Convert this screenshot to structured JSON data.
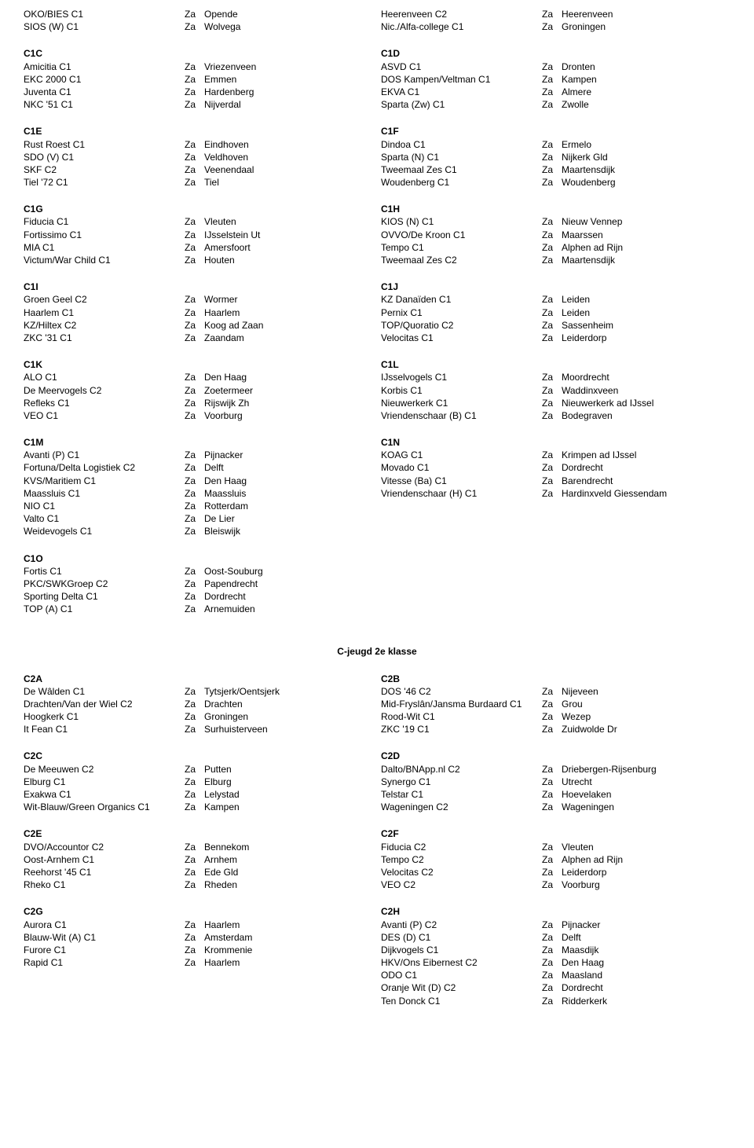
{
  "section_title": "C-jeugd 2e klasse",
  "top_left": [
    {
      "name": "OKO/BIES C1",
      "day": "Za",
      "city": "Opende"
    },
    {
      "name": "SIOS (W) C1",
      "day": "Za",
      "city": "Wolvega"
    }
  ],
  "top_right": [
    {
      "name": "Heerenveen C2",
      "day": "Za",
      "city": "Heerenveen"
    },
    {
      "name": "Nic./Alfa-college C1",
      "day": "Za",
      "city": "Groningen"
    }
  ],
  "upper": {
    "left": [
      {
        "header": "C1C",
        "teams": [
          {
            "name": "Amicitia C1",
            "day": "Za",
            "city": "Vriezenveen"
          },
          {
            "name": "EKC 2000 C1",
            "day": "Za",
            "city": "Emmen"
          },
          {
            "name": "Juventa C1",
            "day": "Za",
            "city": "Hardenberg"
          },
          {
            "name": "NKC '51 C1",
            "day": "Za",
            "city": "Nijverdal"
          }
        ]
      },
      {
        "header": "C1E",
        "teams": [
          {
            "name": "Rust Roest C1",
            "day": "Za",
            "city": "Eindhoven"
          },
          {
            "name": "SDO (V) C1",
            "day": "Za",
            "city": "Veldhoven"
          },
          {
            "name": "SKF C2",
            "day": "Za",
            "city": "Veenendaal"
          },
          {
            "name": "Tiel '72 C1",
            "day": "Za",
            "city": "Tiel"
          }
        ]
      },
      {
        "header": "C1G",
        "teams": [
          {
            "name": "Fiducia C1",
            "day": "Za",
            "city": "Vleuten"
          },
          {
            "name": "Fortissimo C1",
            "day": "Za",
            "city": "IJsselstein Ut"
          },
          {
            "name": "MIA C1",
            "day": "Za",
            "city": "Amersfoort"
          },
          {
            "name": "Victum/War Child C1",
            "day": "Za",
            "city": "Houten"
          }
        ]
      },
      {
        "header": "C1I",
        "teams": [
          {
            "name": "Groen Geel C2",
            "day": "Za",
            "city": "Wormer"
          },
          {
            "name": "Haarlem C1",
            "day": "Za",
            "city": "Haarlem"
          },
          {
            "name": "KZ/Hiltex C2",
            "day": "Za",
            "city": "Koog ad Zaan"
          },
          {
            "name": "ZKC '31 C1",
            "day": "Za",
            "city": "Zaandam"
          }
        ]
      },
      {
        "header": "C1K",
        "teams": [
          {
            "name": "ALO C1",
            "day": "Za",
            "city": "Den Haag"
          },
          {
            "name": "De Meervogels C2",
            "day": "Za",
            "city": "Zoetermeer"
          },
          {
            "name": "Refleks C1",
            "day": "Za",
            "city": "Rijswijk Zh"
          },
          {
            "name": "VEO C1",
            "day": "Za",
            "city": "Voorburg"
          }
        ]
      },
      {
        "header": "C1M",
        "teams": [
          {
            "name": "Avanti (P) C1",
            "day": "Za",
            "city": "Pijnacker"
          },
          {
            "name": "Fortuna/Delta Logistiek C2",
            "day": "Za",
            "city": "Delft"
          },
          {
            "name": "KVS/Maritiem C1",
            "day": "Za",
            "city": "Den Haag"
          },
          {
            "name": "Maassluis C1",
            "day": "Za",
            "city": "Maassluis"
          },
          {
            "name": "NIO C1",
            "day": "Za",
            "city": "Rotterdam"
          },
          {
            "name": "Valto C1",
            "day": "Za",
            "city": "De Lier"
          },
          {
            "name": "Weidevogels C1",
            "day": "Za",
            "city": "Bleiswijk"
          }
        ]
      },
      {
        "header": "C1O",
        "teams": [
          {
            "name": "Fortis C1",
            "day": "Za",
            "city": "Oost-Souburg"
          },
          {
            "name": "PKC/SWKGroep C2",
            "day": "Za",
            "city": "Papendrecht"
          },
          {
            "name": "Sporting Delta C1",
            "day": "Za",
            "city": "Dordrecht"
          },
          {
            "name": "TOP (A) C1",
            "day": "Za",
            "city": "Arnemuiden"
          }
        ]
      }
    ],
    "right": [
      {
        "header": "C1D",
        "teams": [
          {
            "name": "ASVD C1",
            "day": "Za",
            "city": "Dronten"
          },
          {
            "name": "DOS Kampen/Veltman C1",
            "day": "Za",
            "city": "Kampen"
          },
          {
            "name": "EKVA C1",
            "day": "Za",
            "city": "Almere"
          },
          {
            "name": "Sparta (Zw) C1",
            "day": "Za",
            "city": "Zwolle"
          }
        ]
      },
      {
        "header": "C1F",
        "teams": [
          {
            "name": "Dindoa C1",
            "day": "Za",
            "city": "Ermelo"
          },
          {
            "name": "Sparta (N) C1",
            "day": "Za",
            "city": "Nijkerk Gld"
          },
          {
            "name": "Tweemaal Zes C1",
            "day": "Za",
            "city": "Maartensdijk"
          },
          {
            "name": "Woudenberg C1",
            "day": "Za",
            "city": "Woudenberg"
          }
        ]
      },
      {
        "header": "C1H",
        "teams": [
          {
            "name": "KIOS (N) C1",
            "day": "Za",
            "city": "Nieuw Vennep"
          },
          {
            "name": "OVVO/De Kroon C1",
            "day": "Za",
            "city": "Maarssen"
          },
          {
            "name": "Tempo C1",
            "day": "Za",
            "city": "Alphen ad Rijn"
          },
          {
            "name": "Tweemaal Zes C2",
            "day": "Za",
            "city": "Maartensdijk"
          }
        ]
      },
      {
        "header": "C1J",
        "teams": [
          {
            "name": "KZ Danaïden C1",
            "day": "Za",
            "city": "Leiden"
          },
          {
            "name": "Pernix C1",
            "day": "Za",
            "city": "Leiden"
          },
          {
            "name": "TOP/Quoratio C2",
            "day": "Za",
            "city": "Sassenheim"
          },
          {
            "name": "Velocitas C1",
            "day": "Za",
            "city": "Leiderdorp"
          }
        ]
      },
      {
        "header": "C1L",
        "teams": [
          {
            "name": "IJsselvogels C1",
            "day": "Za",
            "city": "Moordrecht"
          },
          {
            "name": "Korbis C1",
            "day": "Za",
            "city": "Waddinxveen"
          },
          {
            "name": "Nieuwerkerk C1",
            "day": "Za",
            "city": "Nieuwerkerk ad IJssel"
          },
          {
            "name": "Vriendenschaar (B) C1",
            "day": "Za",
            "city": "Bodegraven"
          }
        ]
      },
      {
        "header": "C1N",
        "teams": [
          {
            "name": "KOAG C1",
            "day": "Za",
            "city": "Krimpen ad IJssel"
          },
          {
            "name": "Movado C1",
            "day": "Za",
            "city": "Dordrecht"
          },
          {
            "name": "Vitesse (Ba) C1",
            "day": "Za",
            "city": "Barendrecht"
          },
          {
            "name": "Vriendenschaar (H) C1",
            "day": "Za",
            "city": "Hardinxveld Giessendam"
          }
        ]
      }
    ]
  },
  "lower": {
    "left": [
      {
        "header": "C2A",
        "teams": [
          {
            "name": "De Wâlden C1",
            "day": "Za",
            "city": "Tytsjerk/Oentsjerk"
          },
          {
            "name": "Drachten/Van der Wiel C2",
            "day": "Za",
            "city": "Drachten"
          },
          {
            "name": "Hoogkerk C1",
            "day": "Za",
            "city": "Groningen"
          },
          {
            "name": "It Fean C1",
            "day": "Za",
            "city": "Surhuisterveen"
          }
        ]
      },
      {
        "header": "C2C",
        "teams": [
          {
            "name": "De Meeuwen C2",
            "day": "Za",
            "city": "Putten"
          },
          {
            "name": "Elburg C1",
            "day": "Za",
            "city": "Elburg"
          },
          {
            "name": "Exakwa C1",
            "day": "Za",
            "city": "Lelystad"
          },
          {
            "name": "Wit-Blauw/Green Organics C1",
            "day": "Za",
            "city": "Kampen"
          }
        ]
      },
      {
        "header": "C2E",
        "teams": [
          {
            "name": "DVO/Accountor C2",
            "day": "Za",
            "city": "Bennekom"
          },
          {
            "name": "Oost-Arnhem C1",
            "day": "Za",
            "city": "Arnhem"
          },
          {
            "name": "Reehorst '45 C1",
            "day": "Za",
            "city": "Ede Gld"
          },
          {
            "name": "Rheko C1",
            "day": "Za",
            "city": "Rheden"
          }
        ]
      },
      {
        "header": "C2G",
        "teams": [
          {
            "name": "Aurora C1",
            "day": "Za",
            "city": "Haarlem"
          },
          {
            "name": "Blauw-Wit (A) C1",
            "day": "Za",
            "city": "Amsterdam"
          },
          {
            "name": "Furore C1",
            "day": "Za",
            "city": "Krommenie"
          },
          {
            "name": "Rapid C1",
            "day": "Za",
            "city": "Haarlem"
          }
        ]
      }
    ],
    "right": [
      {
        "header": "C2B",
        "teams": [
          {
            "name": "DOS '46 C2",
            "day": "Za",
            "city": "Nijeveen"
          },
          {
            "name": "Mid-Fryslân/Jansma Burdaard C1",
            "day": "Za",
            "city": "Grou"
          },
          {
            "name": "Rood-Wit C1",
            "day": "Za",
            "city": "Wezep"
          },
          {
            "name": "ZKC '19 C1",
            "day": "Za",
            "city": "Zuidwolde Dr"
          }
        ]
      },
      {
        "header": "C2D",
        "teams": [
          {
            "name": "Dalto/BNApp.nl C2",
            "day": "Za",
            "city": "Driebergen-Rijsenburg"
          },
          {
            "name": "Synergo C1",
            "day": "Za",
            "city": "Utrecht"
          },
          {
            "name": "Telstar C1",
            "day": "Za",
            "city": "Hoevelaken"
          },
          {
            "name": "Wageningen C2",
            "day": "Za",
            "city": "Wageningen"
          }
        ]
      },
      {
        "header": "C2F",
        "teams": [
          {
            "name": "Fiducia C2",
            "day": "Za",
            "city": "Vleuten"
          },
          {
            "name": "Tempo C2",
            "day": "Za",
            "city": "Alphen ad Rijn"
          },
          {
            "name": "Velocitas C2",
            "day": "Za",
            "city": "Leiderdorp"
          },
          {
            "name": "VEO C2",
            "day": "Za",
            "city": "Voorburg"
          }
        ]
      },
      {
        "header": "C2H",
        "teams": [
          {
            "name": "Avanti (P) C2",
            "day": "Za",
            "city": "Pijnacker"
          },
          {
            "name": "DES (D) C1",
            "day": "Za",
            "city": "Delft"
          },
          {
            "name": "Dijkvogels C1",
            "day": "Za",
            "city": "Maasdijk"
          },
          {
            "name": "HKV/Ons Eibernest C2",
            "day": "Za",
            "city": "Den Haag"
          },
          {
            "name": "ODO C1",
            "day": "Za",
            "city": "Maasland"
          },
          {
            "name": "Oranje Wit (D) C2",
            "day": "Za",
            "city": "Dordrecht"
          },
          {
            "name": "Ten Donck C1",
            "day": "Za",
            "city": "Ridderkerk"
          }
        ]
      }
    ]
  }
}
